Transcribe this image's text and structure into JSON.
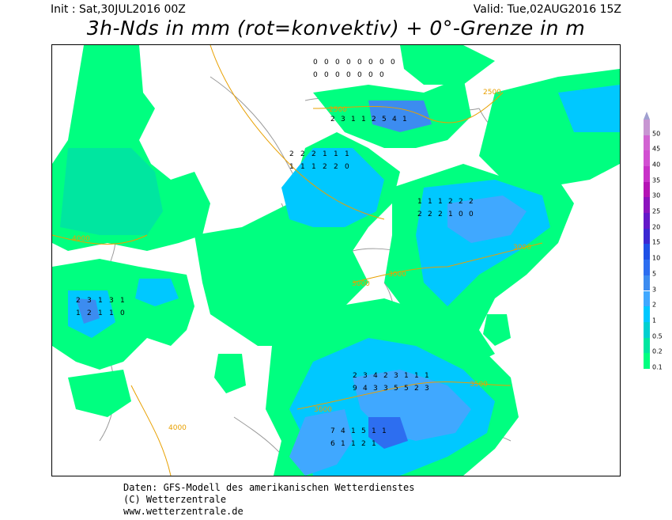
{
  "header": {
    "init": "Init : Sat,30JUL2016 00Z",
    "valid": "Valid: Tue,02AUG2016 15Z",
    "title": "3h-Nds in mm (rot=konvektiv) + 0°-Grenze in m"
  },
  "legend": {
    "levels": [
      "0.1",
      "0.2",
      "0.5",
      "1",
      "2",
      "3",
      "5",
      "10",
      "15",
      "20",
      "25",
      "30",
      "35",
      "40",
      "45",
      "50"
    ],
    "colors": [
      "#00ff80",
      "#00e6a0",
      "#00d0d0",
      "#00c8ff",
      "#40a8ff",
      "#3c8cf0",
      "#2d6ef0",
      "#1e50e6",
      "#3c28d2",
      "#6418c8",
      "#8c14be",
      "#b414b4",
      "#c832c8",
      "#d250d2",
      "#d264d2",
      "#c896d2"
    ]
  },
  "freezing_level_labels": [
    "2500",
    "2500",
    "4000",
    "3000",
    "3000",
    "3000",
    "3500",
    "3600",
    "4000"
  ],
  "precip_values": {
    "north": [
      "0",
      "0",
      "0",
      "0",
      "0",
      "0",
      "0",
      "0",
      "0",
      "0",
      "0",
      "0",
      "0",
      "0",
      "0"
    ],
    "baltic": [
      "2",
      "3",
      "1",
      "1",
      "2",
      "5",
      "4",
      "1"
    ],
    "center": [
      "2",
      "2",
      "2",
      "1",
      "1",
      "1",
      "1",
      "1",
      "1",
      "2",
      "2",
      "0"
    ],
    "east": [
      "1",
      "1",
      "1",
      "2",
      "2",
      "2",
      "2",
      "2",
      "2",
      "1",
      "0",
      "0"
    ],
    "south": [
      "2",
      "3",
      "4",
      "2",
      "3",
      "1",
      "1",
      "1",
      "9",
      "4",
      "3",
      "3",
      "5",
      "5",
      "2",
      "3"
    ],
    "alps": [
      "7",
      "4",
      "1",
      "5",
      "1",
      "1",
      "6",
      "1",
      "1",
      "2",
      "1"
    ],
    "west": [
      "2",
      "3",
      "1",
      "3",
      "1",
      "1",
      "2",
      "1",
      "1",
      "0"
    ]
  },
  "footer": {
    "line1": "Daten: GFS-Modell des amerikanischen Wetterdienstes",
    "line2": "(C) Wetterzentrale",
    "line3": "www.wetterzentrale.de"
  }
}
